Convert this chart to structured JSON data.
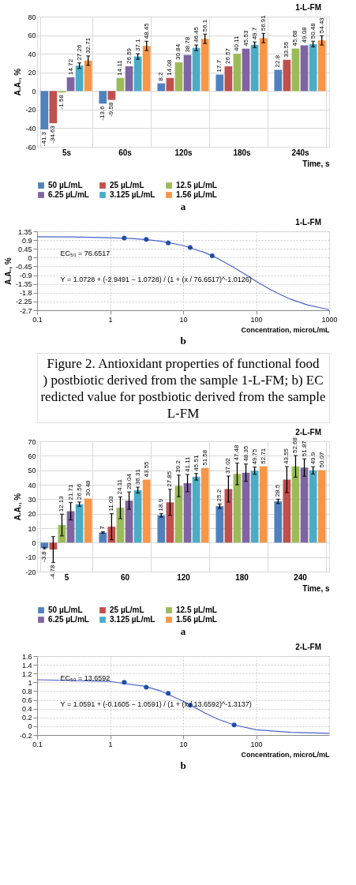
{
  "chart_data": [
    {
      "type": "bar",
      "title": "1-L-FM",
      "ylabel": "A.A., %",
      "xlabel": "Time, s",
      "categories": [
        "5s",
        "60s",
        "120s",
        "180s",
        "240s"
      ],
      "series": [
        {
          "name": "50 µL/mL",
          "color": "#4f81bd",
          "values": [
            -41.3,
            -13.6,
            8.2,
            17.7,
            22.8
          ]
        },
        {
          "name": "25 µL/mL",
          "color": "#c0504d",
          "values": [
            -34.63,
            -9.58,
            14.08,
            26.57,
            33.55
          ]
        },
        {
          "name": "12.5 µL/mL",
          "color": "#9bbb59",
          "values": [
            -1.58,
            14.11,
            30.84,
            40.11,
            45.68
          ]
        },
        {
          "name": "6.25 µL/mL",
          "color": "#8064a2",
          "values": [
            14.72,
            26.59,
            38.78,
            45.53,
            49.08
          ]
        },
        {
          "name": "3.125 µL/mL",
          "color": "#4bacc6",
          "values": [
            27.26,
            37.1,
            46.45,
            49.7,
            50.48
          ],
          "errors": [
            3,
            3,
            3,
            3,
            3
          ]
        },
        {
          "name": "1.56 µL/mL",
          "color": "#f79646",
          "values": [
            32.71,
            48.45,
            56.1,
            56.91,
            54.43
          ],
          "errors": [
            5,
            5,
            5,
            5,
            5
          ]
        }
      ],
      "ylim": [
        -60,
        80
      ],
      "yticks": [
        -60,
        -40,
        -20,
        0,
        20,
        40,
        60,
        80
      ],
      "grid": true,
      "legend": "bottom",
      "data_labels": true,
      "annotations": [
        "a"
      ]
    },
    {
      "type": "line",
      "title": "1-L-FM",
      "ylabel": "A.A., %",
      "xlabel": "Concentration, microL/mL",
      "log": "x",
      "series": [
        {
          "type": "line",
          "color": "#4a62c8",
          "x": [
            0.1,
            0.3,
            1,
            2,
            3,
            5,
            10,
            20,
            25,
            30,
            50,
            70,
            100,
            150,
            200,
            300,
            500,
            1000
          ],
          "values": [
            1.07,
            1.06,
            1.02,
            0.98,
            0.93,
            0.84,
            0.62,
            0.25,
            0.09,
            -0.05,
            -0.51,
            -0.85,
            -1.21,
            -1.6,
            -1.84,
            -2.14,
            -2.42,
            -2.67
          ]
        },
        {
          "type": "scatter",
          "color": "#1f4fa8",
          "marker": "circle",
          "x": [
            1.56,
            3.125,
            6.25,
            12.5,
            25
          ],
          "values": [
            1.01,
            0.93,
            0.75,
            0.52,
            0.09
          ]
        }
      ],
      "xlim": [
        0.1,
        1000
      ],
      "xticks": [
        0.1,
        1,
        10,
        100,
        1000
      ],
      "ylim": [
        -2.7,
        1.35
      ],
      "yticks": [
        -2.7,
        -2.25,
        -1.8,
        -1.35,
        -0.9,
        -0.45,
        0,
        0.45,
        0.9,
        1.35
      ],
      "grid": true,
      "annotations": [
        "EC₅₀ = 76.6517",
        "Y = 1.0728 + (-2.9491 − 1.0728) / (1 + (x / 76.6517)^-1.0126)",
        "b"
      ]
    },
    {
      "type": "other",
      "annotations": [
        "Figure 2. Antioxidant properties of functional food",
        ") postbiotic derived from the sample 1-L-FM; b) EC",
        "redicted value for postbiotic derived from the sample",
        "L-FM"
      ]
    },
    {
      "type": "bar",
      "title": "2-L-FM",
      "ylabel": "A.A., %",
      "xlabel": "Time, s",
      "categories": [
        "5",
        "60",
        "120",
        "180",
        "240"
      ],
      "series": [
        {
          "name": "50 µL/mL",
          "color": "#4f81bd",
          "values": [
            -3.8,
            7,
            18.9,
            25.2,
            28.5
          ],
          "errors": [
            0.5,
            0.5,
            1.2,
            1.5,
            1.5
          ]
        },
        {
          "name": "25 µL/mL",
          "color": "#c0504d",
          "values": [
            -4.78,
            11.03,
            27.85,
            37.02,
            43.55
          ],
          "errors": [
            9,
            9,
            9,
            9,
            9
          ]
        },
        {
          "name": "12.5 µL/mL",
          "color": "#9bbb59",
          "values": [
            12.13,
            24.11,
            39.2,
            47.48,
            52.68
          ],
          "errors": [
            7.5,
            7.5,
            7.5,
            7.5,
            7.5
          ]
        },
        {
          "name": "6.25 µL/mL",
          "color": "#8064a2",
          "values": [
            21.71,
            29.04,
            41.11,
            48.35,
            51.87
          ],
          "errors": [
            6,
            6,
            6,
            6,
            6
          ]
        },
        {
          "name": "3.125 µL/mL",
          "color": "#4bacc6",
          "values": [
            26.56,
            36.31,
            45.51,
            49.75,
            49.9
          ],
          "errors": [
            1.5,
            2,
            2.3,
            2.5,
            2.5
          ]
        },
        {
          "name": "1.56 µL/mL",
          "color": "#f79646",
          "values": [
            30.48,
            43.55,
            51.58,
            52.71,
            50.07
          ]
        }
      ],
      "ylim": [
        -20,
        70
      ],
      "yticks": [
        -20,
        -10,
        0,
        10,
        20,
        30,
        40,
        50,
        60,
        70
      ],
      "grid": true,
      "legend": "bottom",
      "data_labels": true,
      "annotations": [
        "a"
      ]
    },
    {
      "type": "line",
      "title": "2-L-FM",
      "xlabel": "Concentration, microL/mL",
      "log": "x",
      "series": [
        {
          "type": "line",
          "color": "#4a62c8",
          "x": [
            0.1,
            1,
            3,
            5,
            10,
            13.66,
            20,
            30,
            50,
            100,
            300,
            1000
          ],
          "values": [
            1.06,
            1.02,
            0.91,
            0.8,
            0.57,
            0.45,
            0.3,
            0.16,
            0.03,
            -0.08,
            -0.14,
            -0.16
          ]
        },
        {
          "type": "scatter",
          "color": "#1f4fa8",
          "marker": "circle",
          "x": [
            1.56,
            3.125,
            6.25,
            12.5,
            50
          ],
          "values": [
            1.0,
            0.89,
            0.75,
            0.48,
            0.03
          ]
        }
      ],
      "xlim": [
        0.1,
        1000
      ],
      "xticks": [
        0.1,
        1,
        10,
        100
      ],
      "ylim": [
        -0.2,
        1.6
      ],
      "yticks": [
        -0.2,
        0,
        0.2,
        0.4,
        0.6,
        0.8,
        1,
        1.2,
        1.4,
        1.6
      ],
      "grid": true,
      "annotations": [
        "EC₅₀ = 13.6592",
        "Y = 1.0591 + (-0.1605 − 1.0591) / (1 + (x / 13.6592)^-1.3137)",
        "b"
      ]
    }
  ]
}
